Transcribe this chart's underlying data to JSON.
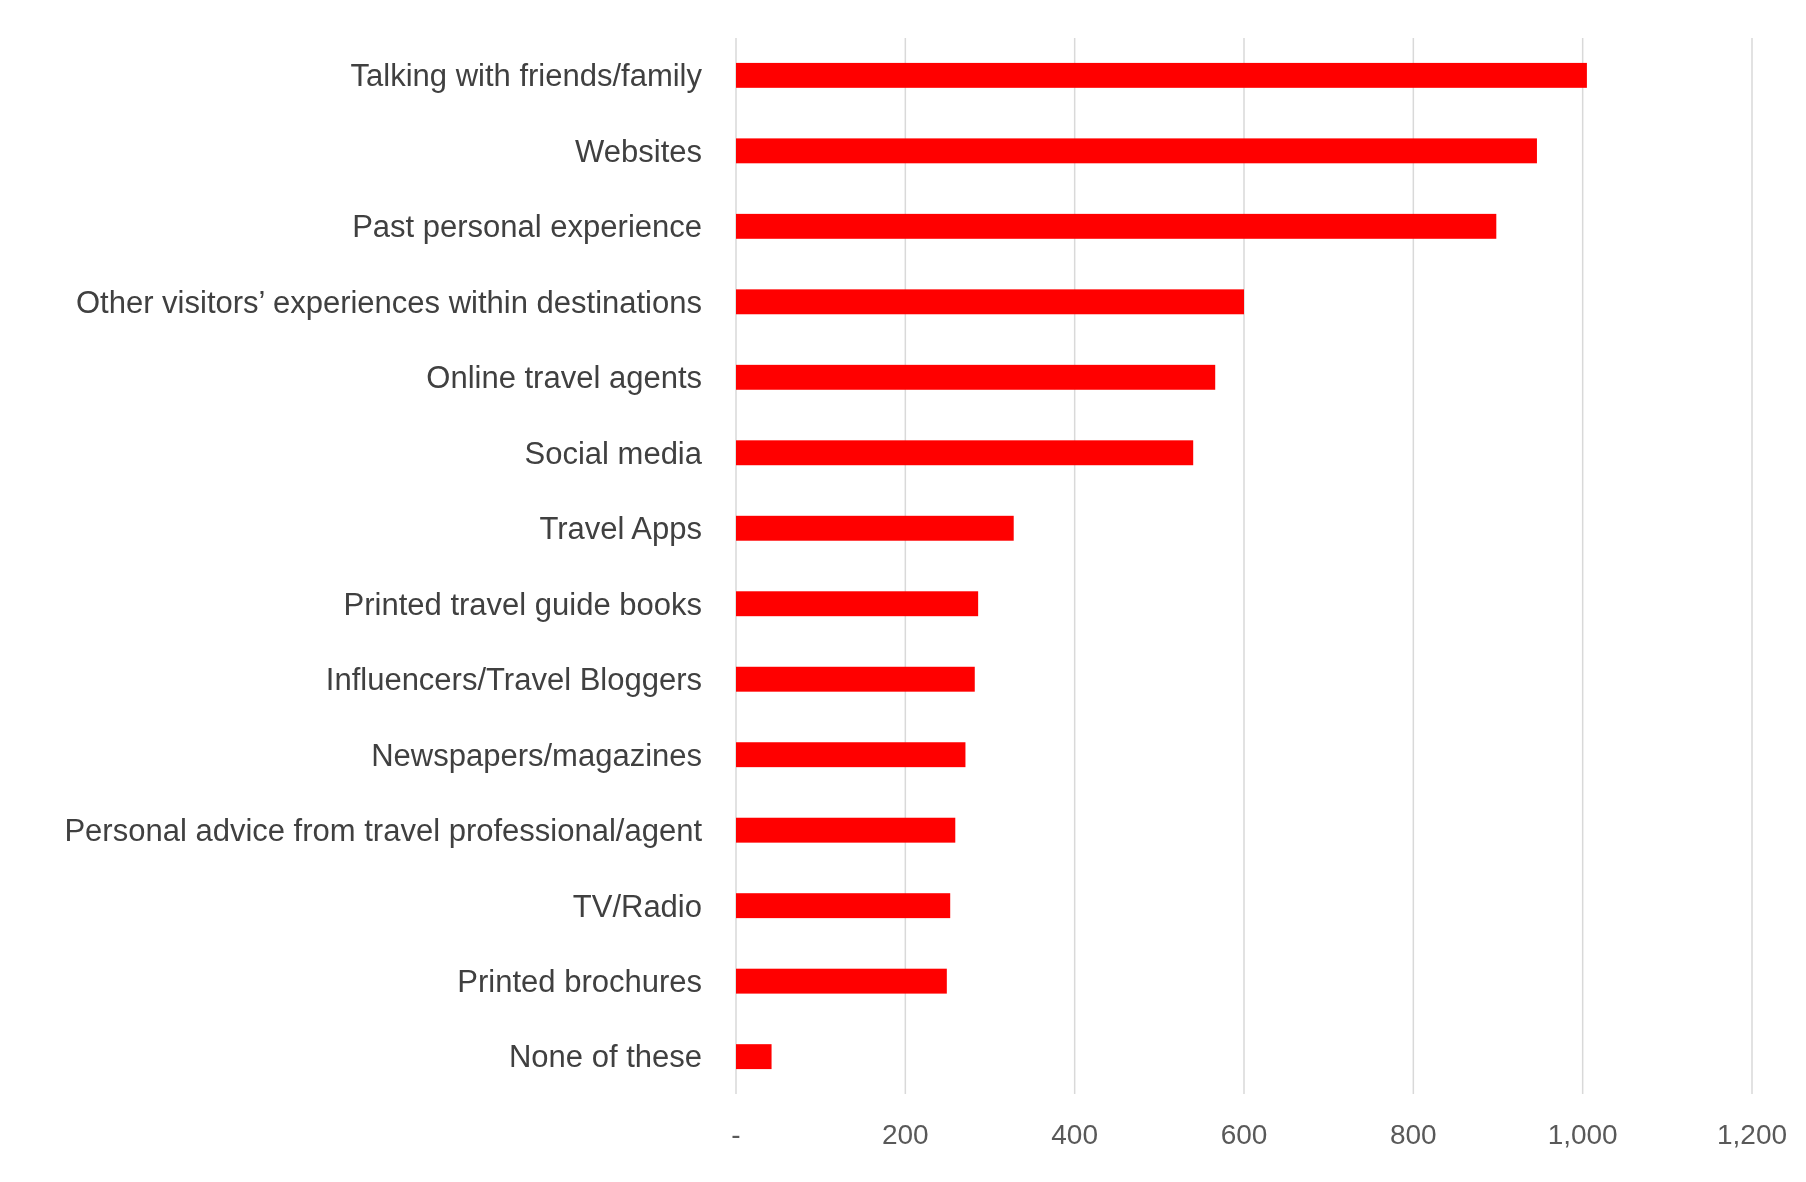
{
  "chart_data": {
    "type": "bar",
    "orientation": "horizontal",
    "categories": [
      "Talking with friends/family",
      "Websites",
      "Past personal experience",
      "Other visitors’ experiences within destinations",
      "Online travel agents",
      "Social media",
      "Travel Apps",
      "Printed travel guide books",
      "Influencers/Travel Bloggers",
      "Newspapers/magazines",
      "Personal advice from travel professional/agent",
      "TV/Radio",
      "Printed brochures",
      "None of these"
    ],
    "values": [
      1005,
      946,
      898,
      600,
      566,
      540,
      328,
      286,
      282,
      271,
      259,
      253,
      249,
      42
    ],
    "color": "#ff0000",
    "xlim": [
      0,
      1200
    ],
    "xticks": [
      {
        "value": 0,
        "label": "-"
      },
      200,
      400,
      600,
      800,
      {
        "value": 1000,
        "label": "1,000"
      },
      {
        "value": 1200,
        "label": "1,200"
      }
    ],
    "grid": "x"
  }
}
